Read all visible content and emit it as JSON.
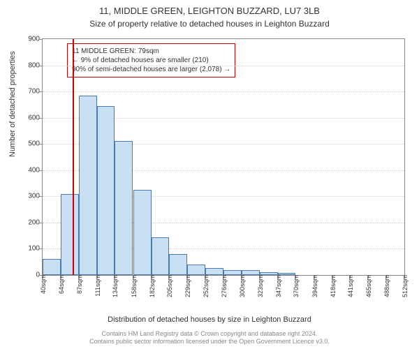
{
  "title": "11, MIDDLE GREEN, LEIGHTON BUZZARD, LU7 3LB",
  "subtitle": "Size of property relative to detached houses in Leighton Buzzard",
  "ylabel": "Number of detached properties",
  "xcaption": "Distribution of detached houses by size in Leighton Buzzard",
  "footer1": "Contains HM Land Registry data © Crown copyright and database right 2024.",
  "footer2": "Contains public sector information licensed under the Open Government Licence v3.0.",
  "chart": {
    "type": "histogram",
    "ylim": [
      0,
      900
    ],
    "ytick_step": 100,
    "background_color": "#ffffff",
    "grid_color": "#cccccc",
    "bar_fill": "#c9dff4",
    "bar_border": "#4a7ab0",
    "marker_color": "#cc0000",
    "x_bins": [
      40,
      64,
      87,
      111,
      134,
      158,
      182,
      205,
      229,
      252,
      276,
      300,
      323,
      347,
      370,
      394,
      418,
      441,
      465,
      488,
      512
    ],
    "x_labels": [
      "40sqm",
      "64sqm",
      "87sqm",
      "111sqm",
      "134sqm",
      "158sqm",
      "182sqm",
      "205sqm",
      "229sqm",
      "252sqm",
      "276sqm",
      "300sqm",
      "323sqm",
      "347sqm",
      "370sqm",
      "394sqm",
      "418sqm",
      "441sqm",
      "465sqm",
      "488sqm",
      "512sqm"
    ],
    "values": [
      60,
      310,
      685,
      645,
      510,
      325,
      145,
      80,
      40,
      28,
      20,
      18,
      12,
      8,
      0,
      0,
      0,
      0,
      0,
      0
    ],
    "marker_value_x": 79,
    "callout": {
      "line1": "11 MIDDLE GREEN: 79sqm",
      "line2": "← 9% of detached houses are smaller (210)",
      "line3": "90% of semi-detached houses are larger (2,078) →"
    },
    "title_fontsize": 13,
    "label_fontsize": 11,
    "tick_fontsize": 10
  }
}
